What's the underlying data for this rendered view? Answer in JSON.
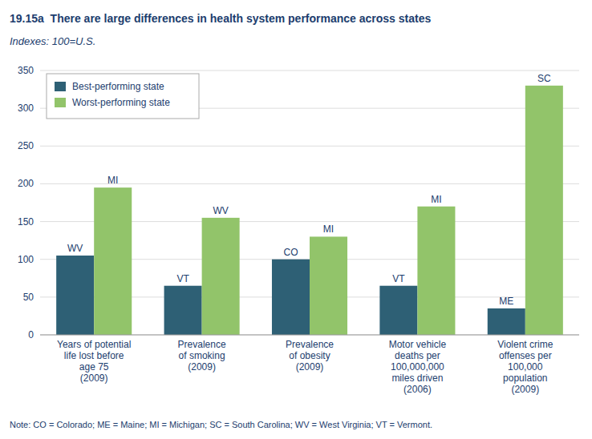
{
  "chart_data": {
    "type": "bar",
    "title": "19.15a  There are large differences in health system performance across states",
    "subtitle": "Indexes: 100=U.S.",
    "annotations": [
      "Note: CO = Colorado; ME = Maine; MI = Michigan; SC = South Carolina; WV = West Virginia; VT = Vermont."
    ],
    "categories": [
      "Years of potential\nlife lost before\nage 75\n(2009)",
      "Prevalence\nof smoking\n(2009)",
      "Prevalence\nof obesity\n(2009)",
      "Motor vehicle\ndeaths per\n100,000,000\nmiles driven\n(2006)",
      "Violent crime\noffenses per\n100,000\npopulation\n(2009)"
    ],
    "series": [
      {
        "name": "Best-performing state",
        "color": "#2e6075",
        "values": [
          105,
          65,
          100,
          65,
          35
        ],
        "labels": [
          "WV",
          "VT",
          "CO",
          "VT",
          "ME"
        ]
      },
      {
        "name": "Worst-performing state",
        "color": "#92c46a",
        "values": [
          195,
          155,
          130,
          170,
          330
        ],
        "labels": [
          "MI",
          "WV",
          "MI",
          "MI",
          "SC"
        ]
      }
    ],
    "ylim": [
      0,
      350
    ],
    "yticks": [
      0,
      50,
      100,
      150,
      200,
      250,
      300,
      350
    ],
    "grid": true,
    "legend": "upper left"
  }
}
